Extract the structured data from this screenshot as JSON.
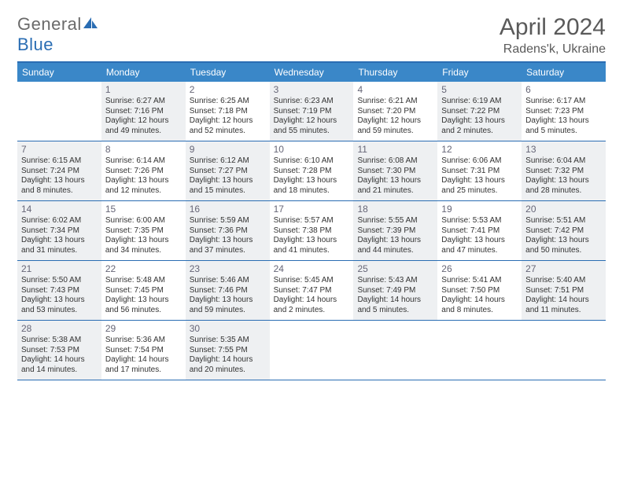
{
  "brand": {
    "part1": "General",
    "part2": "Blue"
  },
  "title": "April 2024",
  "location": "Radens'k, Ukraine",
  "colors": {
    "header_bar": "#3a87c8",
    "rule": "#2a6db3",
    "shaded_bg": "#eef0f2",
    "text": "#333333",
    "muted": "#5a5a5a"
  },
  "day_names": [
    "Sunday",
    "Monday",
    "Tuesday",
    "Wednesday",
    "Thursday",
    "Friday",
    "Saturday"
  ],
  "weeks": [
    [
      {
        "n": "",
        "shaded": false
      },
      {
        "n": "1",
        "shaded": true,
        "sr": "Sunrise: 6:27 AM",
        "ss": "Sunset: 7:16 PM",
        "d1": "Daylight: 12 hours",
        "d2": "and 49 minutes."
      },
      {
        "n": "2",
        "shaded": false,
        "sr": "Sunrise: 6:25 AM",
        "ss": "Sunset: 7:18 PM",
        "d1": "Daylight: 12 hours",
        "d2": "and 52 minutes."
      },
      {
        "n": "3",
        "shaded": true,
        "sr": "Sunrise: 6:23 AM",
        "ss": "Sunset: 7:19 PM",
        "d1": "Daylight: 12 hours",
        "d2": "and 55 minutes."
      },
      {
        "n": "4",
        "shaded": false,
        "sr": "Sunrise: 6:21 AM",
        "ss": "Sunset: 7:20 PM",
        "d1": "Daylight: 12 hours",
        "d2": "and 59 minutes."
      },
      {
        "n": "5",
        "shaded": true,
        "sr": "Sunrise: 6:19 AM",
        "ss": "Sunset: 7:22 PM",
        "d1": "Daylight: 13 hours",
        "d2": "and 2 minutes."
      },
      {
        "n": "6",
        "shaded": false,
        "sr": "Sunrise: 6:17 AM",
        "ss": "Sunset: 7:23 PM",
        "d1": "Daylight: 13 hours",
        "d2": "and 5 minutes."
      }
    ],
    [
      {
        "n": "7",
        "shaded": true,
        "sr": "Sunrise: 6:15 AM",
        "ss": "Sunset: 7:24 PM",
        "d1": "Daylight: 13 hours",
        "d2": "and 8 minutes."
      },
      {
        "n": "8",
        "shaded": false,
        "sr": "Sunrise: 6:14 AM",
        "ss": "Sunset: 7:26 PM",
        "d1": "Daylight: 13 hours",
        "d2": "and 12 minutes."
      },
      {
        "n": "9",
        "shaded": true,
        "sr": "Sunrise: 6:12 AM",
        "ss": "Sunset: 7:27 PM",
        "d1": "Daylight: 13 hours",
        "d2": "and 15 minutes."
      },
      {
        "n": "10",
        "shaded": false,
        "sr": "Sunrise: 6:10 AM",
        "ss": "Sunset: 7:28 PM",
        "d1": "Daylight: 13 hours",
        "d2": "and 18 minutes."
      },
      {
        "n": "11",
        "shaded": true,
        "sr": "Sunrise: 6:08 AM",
        "ss": "Sunset: 7:30 PM",
        "d1": "Daylight: 13 hours",
        "d2": "and 21 minutes."
      },
      {
        "n": "12",
        "shaded": false,
        "sr": "Sunrise: 6:06 AM",
        "ss": "Sunset: 7:31 PM",
        "d1": "Daylight: 13 hours",
        "d2": "and 25 minutes."
      },
      {
        "n": "13",
        "shaded": true,
        "sr": "Sunrise: 6:04 AM",
        "ss": "Sunset: 7:32 PM",
        "d1": "Daylight: 13 hours",
        "d2": "and 28 minutes."
      }
    ],
    [
      {
        "n": "14",
        "shaded": true,
        "sr": "Sunrise: 6:02 AM",
        "ss": "Sunset: 7:34 PM",
        "d1": "Daylight: 13 hours",
        "d2": "and 31 minutes."
      },
      {
        "n": "15",
        "shaded": false,
        "sr": "Sunrise: 6:00 AM",
        "ss": "Sunset: 7:35 PM",
        "d1": "Daylight: 13 hours",
        "d2": "and 34 minutes."
      },
      {
        "n": "16",
        "shaded": true,
        "sr": "Sunrise: 5:59 AM",
        "ss": "Sunset: 7:36 PM",
        "d1": "Daylight: 13 hours",
        "d2": "and 37 minutes."
      },
      {
        "n": "17",
        "shaded": false,
        "sr": "Sunrise: 5:57 AM",
        "ss": "Sunset: 7:38 PM",
        "d1": "Daylight: 13 hours",
        "d2": "and 41 minutes."
      },
      {
        "n": "18",
        "shaded": true,
        "sr": "Sunrise: 5:55 AM",
        "ss": "Sunset: 7:39 PM",
        "d1": "Daylight: 13 hours",
        "d2": "and 44 minutes."
      },
      {
        "n": "19",
        "shaded": false,
        "sr": "Sunrise: 5:53 AM",
        "ss": "Sunset: 7:41 PM",
        "d1": "Daylight: 13 hours",
        "d2": "and 47 minutes."
      },
      {
        "n": "20",
        "shaded": true,
        "sr": "Sunrise: 5:51 AM",
        "ss": "Sunset: 7:42 PM",
        "d1": "Daylight: 13 hours",
        "d2": "and 50 minutes."
      }
    ],
    [
      {
        "n": "21",
        "shaded": true,
        "sr": "Sunrise: 5:50 AM",
        "ss": "Sunset: 7:43 PM",
        "d1": "Daylight: 13 hours",
        "d2": "and 53 minutes."
      },
      {
        "n": "22",
        "shaded": false,
        "sr": "Sunrise: 5:48 AM",
        "ss": "Sunset: 7:45 PM",
        "d1": "Daylight: 13 hours",
        "d2": "and 56 minutes."
      },
      {
        "n": "23",
        "shaded": true,
        "sr": "Sunrise: 5:46 AM",
        "ss": "Sunset: 7:46 PM",
        "d1": "Daylight: 13 hours",
        "d2": "and 59 minutes."
      },
      {
        "n": "24",
        "shaded": false,
        "sr": "Sunrise: 5:45 AM",
        "ss": "Sunset: 7:47 PM",
        "d1": "Daylight: 14 hours",
        "d2": "and 2 minutes."
      },
      {
        "n": "25",
        "shaded": true,
        "sr": "Sunrise: 5:43 AM",
        "ss": "Sunset: 7:49 PM",
        "d1": "Daylight: 14 hours",
        "d2": "and 5 minutes."
      },
      {
        "n": "26",
        "shaded": false,
        "sr": "Sunrise: 5:41 AM",
        "ss": "Sunset: 7:50 PM",
        "d1": "Daylight: 14 hours",
        "d2": "and 8 minutes."
      },
      {
        "n": "27",
        "shaded": true,
        "sr": "Sunrise: 5:40 AM",
        "ss": "Sunset: 7:51 PM",
        "d1": "Daylight: 14 hours",
        "d2": "and 11 minutes."
      }
    ],
    [
      {
        "n": "28",
        "shaded": true,
        "sr": "Sunrise: 5:38 AM",
        "ss": "Sunset: 7:53 PM",
        "d1": "Daylight: 14 hours",
        "d2": "and 14 minutes."
      },
      {
        "n": "29",
        "shaded": false,
        "sr": "Sunrise: 5:36 AM",
        "ss": "Sunset: 7:54 PM",
        "d1": "Daylight: 14 hours",
        "d2": "and 17 minutes."
      },
      {
        "n": "30",
        "shaded": true,
        "sr": "Sunrise: 5:35 AM",
        "ss": "Sunset: 7:55 PM",
        "d1": "Daylight: 14 hours",
        "d2": "and 20 minutes."
      },
      {
        "n": "",
        "shaded": false
      },
      {
        "n": "",
        "shaded": false
      },
      {
        "n": "",
        "shaded": false
      },
      {
        "n": "",
        "shaded": false
      }
    ]
  ]
}
